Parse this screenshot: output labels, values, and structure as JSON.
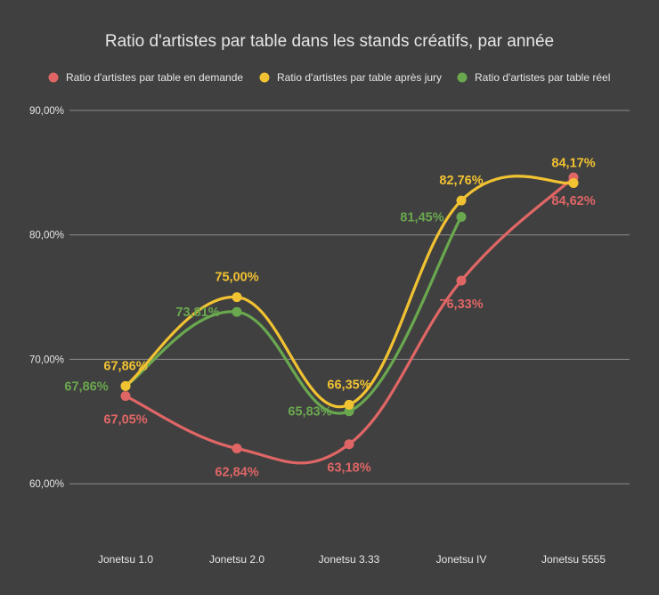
{
  "chart_data": {
    "type": "line",
    "title": "Ratio d'artistes par table dans les stands créatifs, par année",
    "xlabel": "",
    "ylabel": "",
    "categories": [
      "Jonetsu 1.0",
      "Jonetsu 2.0",
      "Jonetsu 3.33",
      "Jonetsu IV",
      "Jonetsu 5555"
    ],
    "yticks": [
      "60,00%",
      "70,00%",
      "80,00%",
      "90,00%"
    ],
    "ylim": [
      55,
      90
    ],
    "grid": true,
    "legend_position": "top",
    "series": [
      {
        "name": "Ratio d'artistes par table en demande",
        "color": "#e06666",
        "values": [
          67.05,
          62.84,
          63.18,
          76.33,
          84.62
        ],
        "labels": [
          "67,05%",
          "62,84%",
          "63,18%",
          "76,33%",
          "84,62%"
        ]
      },
      {
        "name": "Ratio d'artistes par table après jury",
        "color": "#f1c232",
        "values": [
          67.86,
          75.0,
          66.35,
          82.76,
          84.17
        ],
        "labels": [
          "67,86%",
          "75,00%",
          "66,35%",
          "82,76%",
          "84,17%"
        ]
      },
      {
        "name": "Ratio d'artistes par table réel",
        "color": "#6aa84f",
        "values": [
          67.86,
          73.81,
          65.83,
          81.45,
          null
        ],
        "labels": [
          "67,86%",
          "73,81%",
          "65,83%",
          "81,45%",
          null
        ]
      }
    ]
  }
}
